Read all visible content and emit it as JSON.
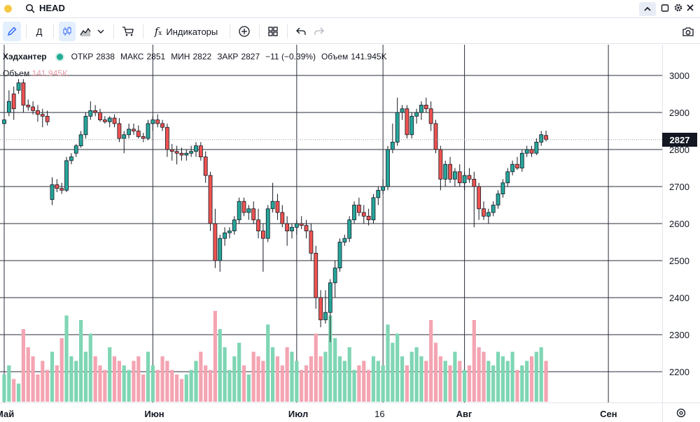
{
  "topbar": {
    "symbol": "HEAD"
  },
  "toolbar": {
    "interval": "Д",
    "indicators_label": "Индикаторы"
  },
  "legend": {
    "name": "Хэдхантер",
    "open_label": "ОТКР",
    "open": "2838",
    "high_label": "МАКС",
    "high": "2851",
    "low_label": "МИН",
    "low": "2822",
    "close_label": "ЗАКР",
    "close": "2827",
    "change": "−11 (−0.39%)",
    "volume_label": "Объем",
    "volume": "141.945K"
  },
  "volume_legend": {
    "label": "Объем",
    "value": "141.945K"
  },
  "last_price": "2827",
  "colors": {
    "up": "#26a69a",
    "down": "#ef5350",
    "vol_up": "#7fd6b4",
    "vol_down": "#f4a4b2"
  },
  "chart_data": {
    "type": "candlestick",
    "y_ticks": [
      "3000",
      "2900",
      "2800",
      "2700",
      "2600",
      "2500",
      "2400",
      "2300",
      "2200"
    ],
    "y_range": [
      2100,
      3040
    ],
    "x_labels": [
      {
        "label": "Май",
        "i": 0
      },
      {
        "label": "Июн",
        "i": 31
      },
      {
        "label": "Июл",
        "i": 61
      },
      {
        "label": "16",
        "i": 79
      },
      {
        "label": "Авг",
        "i": 96
      },
      {
        "label": "Сен",
        "i": 126
      }
    ],
    "candles": [
      [
        2870,
        2895,
        2860,
        2880,
        30
      ],
      [
        2900,
        2960,
        2890,
        2930,
        40
      ],
      [
        2950,
        2970,
        2880,
        2910,
        25
      ],
      [
        2960,
        2990,
        2950,
        2980,
        20
      ],
      [
        2980,
        2990,
        2900,
        2920,
        80
      ],
      [
        2920,
        2935,
        2905,
        2915,
        60
      ],
      [
        2915,
        2930,
        2895,
        2905,
        50
      ],
      [
        2905,
        2920,
        2875,
        2895,
        30
      ],
      [
        2895,
        2910,
        2860,
        2890,
        45
      ],
      [
        2890,
        2905,
        2865,
        2875,
        35
      ],
      [
        2665,
        2725,
        2650,
        2705,
        55
      ],
      [
        2705,
        2720,
        2685,
        2695,
        40
      ],
      [
        2695,
        2710,
        2680,
        2690,
        70
      ],
      [
        2690,
        2780,
        2685,
        2770,
        95
      ],
      [
        2770,
        2790,
        2760,
        2780,
        50
      ],
      [
        2790,
        2815,
        2780,
        2810,
        45
      ],
      [
        2810,
        2850,
        2805,
        2840,
        90
      ],
      [
        2840,
        2900,
        2830,
        2890,
        55
      ],
      [
        2890,
        2930,
        2880,
        2905,
        75
      ],
      [
        2905,
        2920,
        2890,
        2900,
        50
      ],
      [
        2900,
        2910,
        2875,
        2880,
        40
      ],
      [
        2880,
        2890,
        2870,
        2875,
        35
      ],
      [
        2875,
        2890,
        2860,
        2885,
        60
      ],
      [
        2885,
        2895,
        2860,
        2870,
        50
      ],
      [
        2870,
        2885,
        2820,
        2830,
        45
      ],
      [
        2830,
        2850,
        2790,
        2840,
        40
      ],
      [
        2840,
        2870,
        2830,
        2855,
        35
      ],
      [
        2855,
        2870,
        2840,
        2850,
        45
      ],
      [
        2850,
        2865,
        2830,
        2835,
        50
      ],
      [
        2835,
        2845,
        2820,
        2830,
        30
      ],
      [
        2830,
        2880,
        2825,
        2870,
        55
      ],
      [
        2870,
        2890,
        2850,
        2880,
        40
      ],
      [
        2880,
        2895,
        2860,
        2870,
        35
      ],
      [
        2870,
        2880,
        2850,
        2860,
        50
      ],
      [
        2860,
        2870,
        2780,
        2800,
        45
      ],
      [
        2800,
        2815,
        2770,
        2795,
        35
      ],
      [
        2795,
        2810,
        2760,
        2790,
        30
      ],
      [
        2790,
        2805,
        2770,
        2785,
        25
      ],
      [
        2785,
        2800,
        2770,
        2790,
        30
      ],
      [
        2790,
        2810,
        2780,
        2795,
        35
      ],
      [
        2795,
        2820,
        2780,
        2810,
        45
      ],
      [
        2810,
        2820,
        2770,
        2780,
        55
      ],
      [
        2780,
        2795,
        2710,
        2730,
        40
      ],
      [
        2730,
        2740,
        2580,
        2600,
        35
      ],
      [
        2600,
        2640,
        2480,
        2500,
        100
      ],
      [
        2500,
        2570,
        2470,
        2560,
        80
      ],
      [
        2560,
        2590,
        2540,
        2575,
        60
      ],
      [
        2575,
        2590,
        2560,
        2580,
        35
      ],
      [
        2580,
        2620,
        2570,
        2610,
        50
      ],
      [
        2610,
        2670,
        2600,
        2660,
        65
      ],
      [
        2660,
        2670,
        2620,
        2630,
        40
      ],
      [
        2630,
        2650,
        2610,
        2640,
        30
      ],
      [
        2640,
        2660,
        2600,
        2610,
        55
      ],
      [
        2610,
        2640,
        2560,
        2580,
        50
      ],
      [
        2580,
        2600,
        2470,
        2560,
        45
      ],
      [
        2560,
        2650,
        2550,
        2640,
        85
      ],
      [
        2640,
        2710,
        2630,
        2660,
        60
      ],
      [
        2660,
        2680,
        2610,
        2630,
        50
      ],
      [
        2630,
        2650,
        2590,
        2600,
        40
      ],
      [
        2600,
        2620,
        2540,
        2580,
        60
      ],
      [
        2580,
        2600,
        2560,
        2590,
        55
      ],
      [
        2590,
        2610,
        2570,
        2600,
        45
      ],
      [
        2600,
        2620,
        2585,
        2595,
        35
      ],
      [
        2595,
        2610,
        2560,
        2580,
        40
      ],
      [
        2580,
        2600,
        2500,
        2520,
        50
      ],
      [
        2520,
        2540,
        2370,
        2400,
        75
      ],
      [
        2400,
        2420,
        2320,
        2340,
        50
      ],
      [
        2340,
        2420,
        2330,
        2360,
        55
      ],
      [
        2360,
        2450,
        2280,
        2440,
        95
      ],
      [
        2440,
        2500,
        2400,
        2480,
        70
      ],
      [
        2480,
        2560,
        2470,
        2550,
        50
      ],
      [
        2550,
        2570,
        2540,
        2560,
        45
      ],
      [
        2560,
        2620,
        2550,
        2610,
        60
      ],
      [
        2610,
        2660,
        2600,
        2650,
        35
      ],
      [
        2650,
        2670,
        2620,
        2630,
        40
      ],
      [
        2630,
        2650,
        2600,
        2620,
        45
      ],
      [
        2620,
        2640,
        2595,
        2610,
        35
      ],
      [
        2610,
        2680,
        2600,
        2670,
        50
      ],
      [
        2670,
        2700,
        2650,
        2690,
        45
      ],
      [
        2690,
        2720,
        2680,
        2700,
        40
      ],
      [
        2700,
        2810,
        2690,
        2800,
        85
      ],
      [
        2800,
        2870,
        2790,
        2820,
        65
      ],
      [
        2820,
        2940,
        2810,
        2900,
        75
      ],
      [
        2900,
        2920,
        2880,
        2910,
        50
      ],
      [
        2910,
        2920,
        2830,
        2840,
        40
      ],
      [
        2840,
        2900,
        2830,
        2890,
        55
      ],
      [
        2890,
        2910,
        2870,
        2900,
        60
      ],
      [
        2900,
        2930,
        2880,
        2920,
        50
      ],
      [
        2920,
        2940,
        2900,
        2910,
        45
      ],
      [
        2910,
        2930,
        2850,
        2870,
        90
      ],
      [
        2870,
        2880,
        2790,
        2800,
        65
      ],
      [
        2800,
        2810,
        2690,
        2720,
        50
      ],
      [
        2720,
        2770,
        2700,
        2760,
        45
      ],
      [
        2760,
        2780,
        2710,
        2720,
        40
      ],
      [
        2720,
        2750,
        2700,
        2740,
        55
      ],
      [
        2740,
        2760,
        2700,
        2710,
        45
      ],
      [
        2710,
        2740,
        2690,
        2730,
        35
      ],
      [
        2730,
        2750,
        2710,
        2720,
        40
      ],
      [
        2720,
        2740,
        2590,
        2700,
        90
      ],
      [
        2700,
        2710,
        2610,
        2640,
        60
      ],
      [
        2640,
        2660,
        2610,
        2620,
        55
      ],
      [
        2620,
        2640,
        2600,
        2630,
        45
      ],
      [
        2630,
        2660,
        2620,
        2650,
        40
      ],
      [
        2650,
        2690,
        2640,
        2680,
        55
      ],
      [
        2680,
        2720,
        2670,
        2710,
        50
      ],
      [
        2710,
        2750,
        2700,
        2740,
        45
      ],
      [
        2740,
        2770,
        2730,
        2760,
        55
      ],
      [
        2760,
        2780,
        2745,
        2750,
        35
      ],
      [
        2750,
        2800,
        2740,
        2790,
        40
      ],
      [
        2790,
        2810,
        2780,
        2800,
        45
      ],
      [
        2800,
        2810,
        2780,
        2790,
        50
      ],
      [
        2790,
        2830,
        2785,
        2820,
        55
      ],
      [
        2820,
        2850,
        2810,
        2840,
        60
      ],
      [
        2838,
        2851,
        2822,
        2827,
        45
      ]
    ]
  }
}
